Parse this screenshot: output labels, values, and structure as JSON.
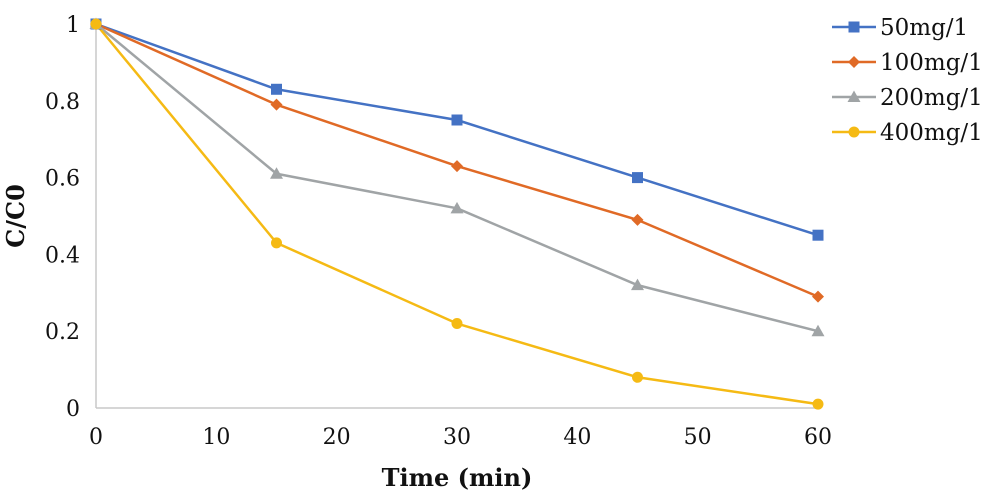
{
  "chart_data": {
    "type": "line",
    "title": "",
    "xlabel": "Time (min)",
    "ylabel": "C/C0",
    "xlim": [
      0,
      60
    ],
    "ylim": [
      0,
      1
    ],
    "x_ticks": [
      0,
      10,
      20,
      30,
      40,
      50,
      60
    ],
    "y_ticks": [
      0,
      0.2,
      0.4,
      0.6,
      0.8,
      1
    ],
    "x_tick_labels": [
      "0",
      "10",
      "20",
      "30",
      "40",
      "50",
      "60"
    ],
    "y_tick_labels": [
      "0",
      "0.2",
      "0.4",
      "0.6",
      "0.8",
      "1"
    ],
    "grid": false,
    "legend_position": "top-right",
    "x": [
      0,
      15,
      30,
      45,
      60
    ],
    "series": [
      {
        "name": "50mg/1",
        "color": "#4472C4",
        "marker": "square",
        "values": [
          1.0,
          0.83,
          0.75,
          0.6,
          0.45
        ]
      },
      {
        "name": "100mg/1",
        "color": "#E06A26",
        "marker": "diamond",
        "values": [
          1.0,
          0.79,
          0.63,
          0.49,
          0.29
        ]
      },
      {
        "name": "200mg/1",
        "color": "#A0A4A6",
        "marker": "triangle",
        "values": [
          1.0,
          0.61,
          0.52,
          0.32,
          0.2
        ]
      },
      {
        "name": "400mg/1",
        "color": "#F5BA14",
        "marker": "circle",
        "values": [
          1.0,
          0.43,
          0.22,
          0.08,
          0.01
        ]
      }
    ]
  }
}
